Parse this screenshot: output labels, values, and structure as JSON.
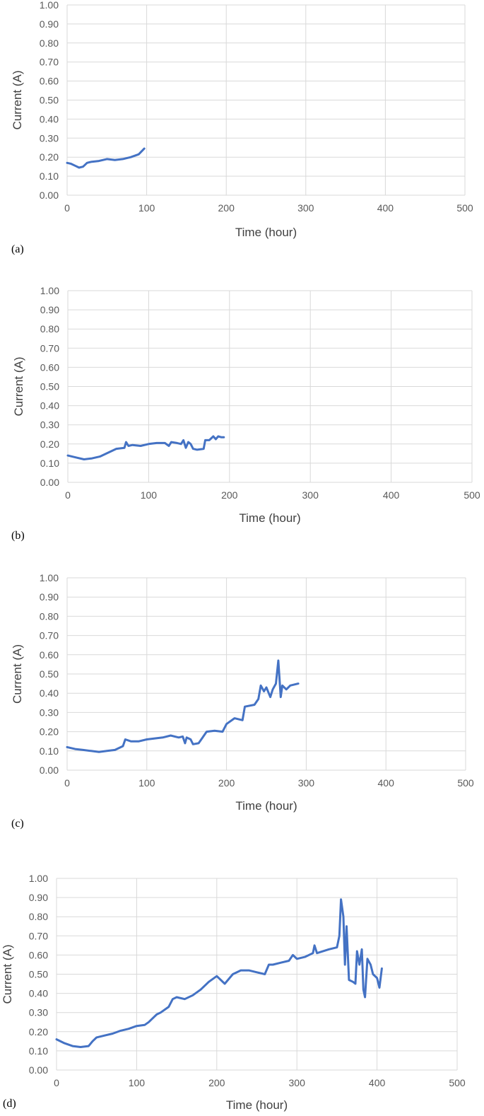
{
  "chart_data": [
    {
      "type": "line",
      "panel_label": "(a)",
      "xlabel": "Time (hour)",
      "ylabel": "Current (A)",
      "xlim": [
        0,
        500
      ],
      "ylim": [
        0,
        1
      ],
      "x_ticks": [
        "0",
        "100",
        "200",
        "300",
        "400",
        "500"
      ],
      "y_ticks": [
        "0.00",
        "0.10",
        "0.20",
        "0.30",
        "0.40",
        "0.50",
        "0.60",
        "0.70",
        "0.80",
        "0.90",
        "1.00"
      ],
      "grid": true,
      "series": [
        {
          "color": "#4472c4",
          "points": [
            [
              0,
              0.17
            ],
            [
              5,
              0.165
            ],
            [
              10,
              0.155
            ],
            [
              15,
              0.145
            ],
            [
              20,
              0.15
            ],
            [
              25,
              0.17
            ],
            [
              30,
              0.175
            ],
            [
              40,
              0.18
            ],
            [
              50,
              0.19
            ],
            [
              60,
              0.185
            ],
            [
              70,
              0.19
            ],
            [
              80,
              0.2
            ],
            [
              90,
              0.215
            ],
            [
              97,
              0.245
            ]
          ]
        }
      ]
    },
    {
      "type": "line",
      "panel_label": "(b)",
      "xlabel": "Time (hour)",
      "ylabel": "Current (A)",
      "xlim": [
        0,
        500
      ],
      "ylim": [
        0,
        1
      ],
      "x_ticks": [
        "0",
        "100",
        "200",
        "300",
        "400",
        "500"
      ],
      "y_ticks": [
        "0.00",
        "0.10",
        "0.20",
        "0.30",
        "0.40",
        "0.50",
        "0.60",
        "0.70",
        "0.80",
        "0.90",
        "1.00"
      ],
      "grid": true,
      "series": [
        {
          "color": "#4472c4",
          "points": [
            [
              0,
              0.14
            ],
            [
              10,
              0.13
            ],
            [
              20,
              0.12
            ],
            [
              30,
              0.125
            ],
            [
              40,
              0.135
            ],
            [
              50,
              0.155
            ],
            [
              60,
              0.175
            ],
            [
              70,
              0.18
            ],
            [
              72,
              0.21
            ],
            [
              75,
              0.19
            ],
            [
              80,
              0.195
            ],
            [
              90,
              0.19
            ],
            [
              100,
              0.2
            ],
            [
              110,
              0.205
            ],
            [
              120,
              0.205
            ],
            [
              125,
              0.19
            ],
            [
              128,
              0.21
            ],
            [
              135,
              0.205
            ],
            [
              140,
              0.2
            ],
            [
              143,
              0.22
            ],
            [
              146,
              0.18
            ],
            [
              149,
              0.21
            ],
            [
              152,
              0.2
            ],
            [
              155,
              0.175
            ],
            [
              160,
              0.17
            ],
            [
              168,
              0.175
            ],
            [
              170,
              0.22
            ],
            [
              175,
              0.22
            ],
            [
              180,
              0.24
            ],
            [
              183,
              0.225
            ],
            [
              186,
              0.24
            ],
            [
              190,
              0.235
            ],
            [
              193,
              0.235
            ]
          ]
        }
      ]
    },
    {
      "type": "line",
      "panel_label": "(c)",
      "xlabel": "Time (hour)",
      "ylabel": "Current (A)",
      "xlim": [
        0,
        500
      ],
      "ylim": [
        0,
        1
      ],
      "x_ticks": [
        "0",
        "100",
        "200",
        "300",
        "400",
        "500"
      ],
      "y_ticks": [
        "0.00",
        "0.10",
        "0.20",
        "0.30",
        "0.40",
        "0.50",
        "0.60",
        "0.70",
        "0.80",
        "0.90",
        "1.00"
      ],
      "grid": true,
      "series": [
        {
          "color": "#4472c4",
          "points": [
            [
              0,
              0.12
            ],
            [
              10,
              0.11
            ],
            [
              20,
              0.105
            ],
            [
              30,
              0.1
            ],
            [
              40,
              0.095
            ],
            [
              50,
              0.1
            ],
            [
              60,
              0.105
            ],
            [
              70,
              0.125
            ],
            [
              73,
              0.16
            ],
            [
              80,
              0.15
            ],
            [
              90,
              0.15
            ],
            [
              100,
              0.16
            ],
            [
              110,
              0.165
            ],
            [
              120,
              0.17
            ],
            [
              130,
              0.18
            ],
            [
              140,
              0.17
            ],
            [
              145,
              0.175
            ],
            [
              148,
              0.14
            ],
            [
              150,
              0.17
            ],
            [
              155,
              0.16
            ],
            [
              158,
              0.135
            ],
            [
              165,
              0.14
            ],
            [
              170,
              0.17
            ],
            [
              175,
              0.2
            ],
            [
              185,
              0.205
            ],
            [
              195,
              0.2
            ],
            [
              200,
              0.24
            ],
            [
              210,
              0.27
            ],
            [
              220,
              0.26
            ],
            [
              223,
              0.33
            ],
            [
              235,
              0.34
            ],
            [
              240,
              0.37
            ],
            [
              243,
              0.44
            ],
            [
              247,
              0.41
            ],
            [
              250,
              0.43
            ],
            [
              255,
              0.38
            ],
            [
              258,
              0.42
            ],
            [
              262,
              0.45
            ],
            [
              265,
              0.57
            ],
            [
              268,
              0.38
            ],
            [
              270,
              0.44
            ],
            [
              275,
              0.42
            ],
            [
              280,
              0.44
            ],
            [
              290,
              0.45
            ]
          ]
        }
      ]
    },
    {
      "type": "line",
      "panel_label": "(d)",
      "xlabel": "Time (hour)",
      "ylabel": "Current (A)",
      "xlim": [
        0,
        500
      ],
      "ylim": [
        0,
        1
      ],
      "x_ticks": [
        "0",
        "100",
        "200",
        "300",
        "400",
        "500"
      ],
      "y_ticks": [
        "0.00",
        "0.10",
        "0.20",
        "0.30",
        "0.40",
        "0.50",
        "0.60",
        "0.70",
        "0.80",
        "0.90",
        "1.00"
      ],
      "grid": true,
      "series": [
        {
          "color": "#4472c4",
          "points": [
            [
              0,
              0.16
            ],
            [
              10,
              0.14
            ],
            [
              20,
              0.125
            ],
            [
              30,
              0.12
            ],
            [
              40,
              0.125
            ],
            [
              45,
              0.15
            ],
            [
              50,
              0.17
            ],
            [
              60,
              0.18
            ],
            [
              70,
              0.19
            ],
            [
              80,
              0.205
            ],
            [
              90,
              0.215
            ],
            [
              100,
              0.23
            ],
            [
              110,
              0.235
            ],
            [
              115,
              0.25
            ],
            [
              120,
              0.27
            ],
            [
              125,
              0.29
            ],
            [
              130,
              0.3
            ],
            [
              140,
              0.33
            ],
            [
              145,
              0.37
            ],
            [
              150,
              0.38
            ],
            [
              160,
              0.37
            ],
            [
              170,
              0.39
            ],
            [
              180,
              0.42
            ],
            [
              190,
              0.46
            ],
            [
              200,
              0.49
            ],
            [
              210,
              0.45
            ],
            [
              220,
              0.5
            ],
            [
              230,
              0.52
            ],
            [
              240,
              0.52
            ],
            [
              250,
              0.51
            ],
            [
              260,
              0.5
            ],
            [
              265,
              0.55
            ],
            [
              270,
              0.55
            ],
            [
              280,
              0.56
            ],
            [
              290,
              0.57
            ],
            [
              295,
              0.6
            ],
            [
              300,
              0.58
            ],
            [
              310,
              0.59
            ],
            [
              320,
              0.61
            ],
            [
              322,
              0.65
            ],
            [
              325,
              0.61
            ],
            [
              340,
              0.63
            ],
            [
              350,
              0.64
            ],
            [
              353,
              0.7
            ],
            [
              355,
              0.89
            ],
            [
              358,
              0.8
            ],
            [
              360,
              0.55
            ],
            [
              362,
              0.75
            ],
            [
              365,
              0.47
            ],
            [
              370,
              0.46
            ],
            [
              373,
              0.45
            ],
            [
              375,
              0.62
            ],
            [
              378,
              0.55
            ],
            [
              381,
              0.63
            ],
            [
              383,
              0.42
            ],
            [
              385,
              0.38
            ],
            [
              388,
              0.58
            ],
            [
              392,
              0.55
            ],
            [
              395,
              0.5
            ],
            [
              400,
              0.48
            ],
            [
              403,
              0.43
            ],
            [
              406,
              0.53
            ]
          ]
        }
      ]
    }
  ]
}
